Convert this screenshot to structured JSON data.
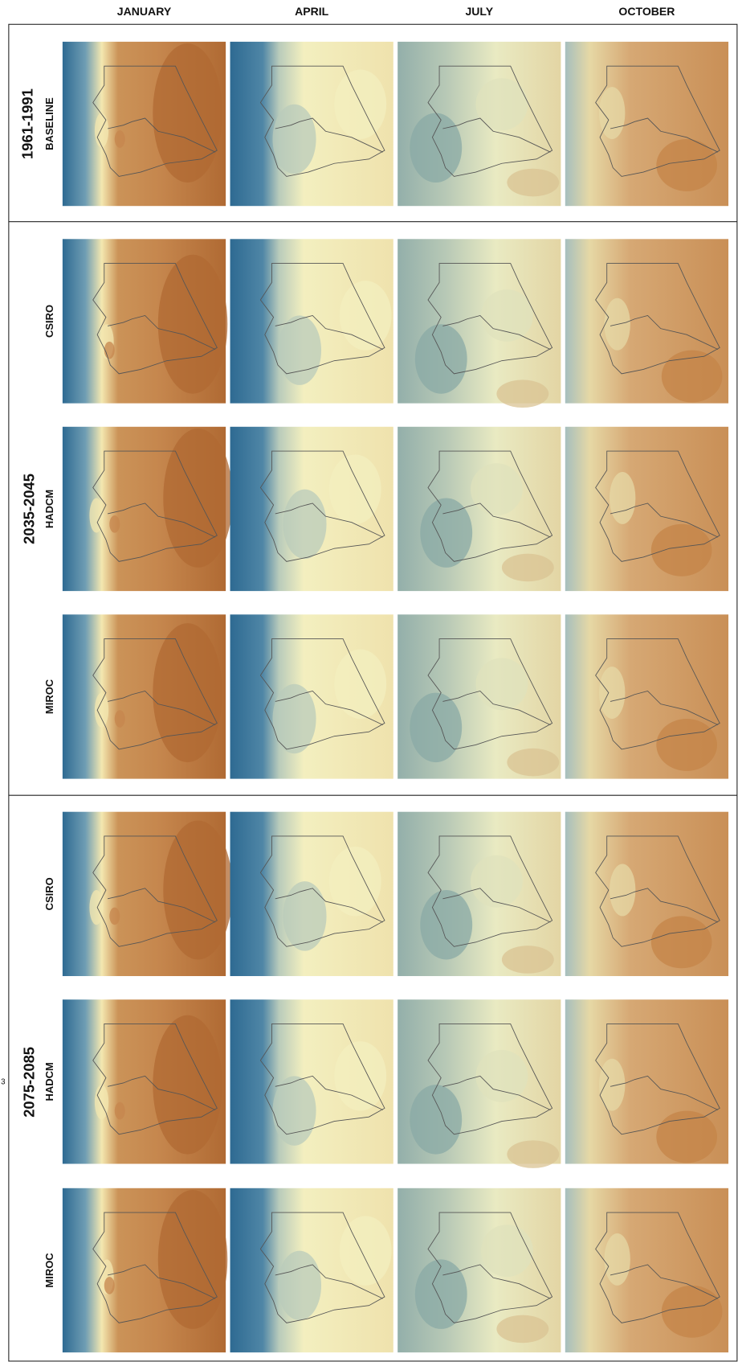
{
  "columns": [
    "JANUARY",
    "APRIL",
    "JULY",
    "OCTOBER"
  ],
  "groups": [
    {
      "period": "1961-1991",
      "rows": [
        "BASELINE"
      ]
    },
    {
      "period": "2035-2045",
      "rows": [
        "CSIRO",
        "HADCM",
        "MIROC"
      ]
    },
    {
      "period": "2075-2085",
      "rows": [
        "CSIRO",
        "HADCM",
        "MIROC"
      ]
    }
  ],
  "margin_note": "3"
}
